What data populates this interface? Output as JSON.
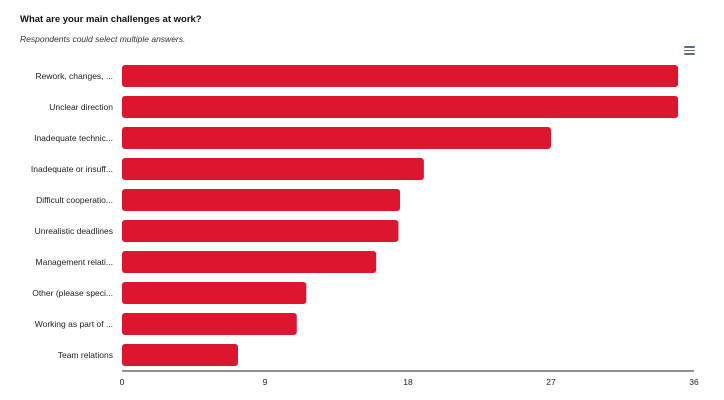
{
  "chart_data": {
    "type": "bar",
    "orientation": "horizontal",
    "title": "What are your main challenges at work?",
    "subtitle": "Respondents could select multiple answers.",
    "categories": [
      "Rework, changes, ...",
      "Unclear direction",
      "Inadequate technic...",
      "Inadequate or insuff...",
      "Difficult cooperatio...",
      "Unrealistic deadlines",
      "Management relati...",
      "Other (please speci...",
      "Working as part of ...",
      "Team relations"
    ],
    "values": [
      35,
      35,
      27,
      19,
      17.5,
      17.4,
      16,
      11.6,
      11,
      7.3
    ],
    "xlim": [
      0,
      36
    ],
    "ticks": [
      "0",
      "9",
      "18",
      "27",
      "36"
    ],
    "color": "#dc162e",
    "grid": false,
    "legend": "none"
  },
  "menu": {
    "icon": "hamburger-menu-icon"
  }
}
